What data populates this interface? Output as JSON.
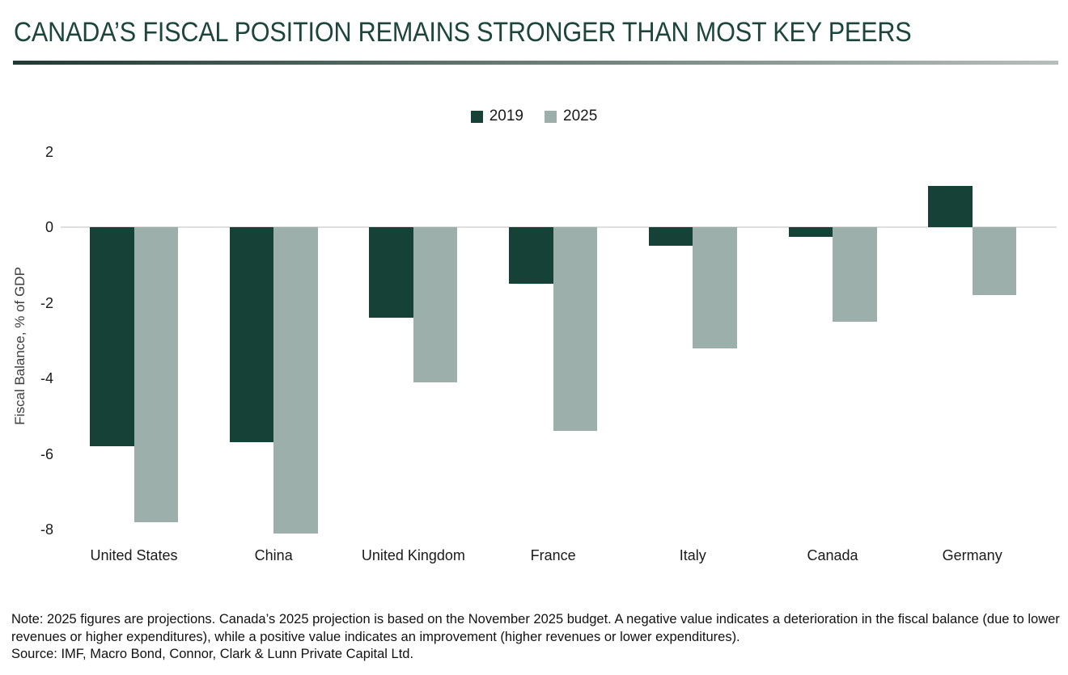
{
  "header": {
    "title": "CANADA’S FISCAL POSITION REMAINS STRONGER THAN MOST KEY PEERS",
    "title_color": "#1d453c",
    "divider_gradient": [
      "#1f3b33",
      "#b5beba"
    ]
  },
  "legend": {
    "items": [
      {
        "label": "2019",
        "color": "#164136"
      },
      {
        "label": "2025",
        "color": "#9cafab"
      }
    ]
  },
  "chart_data": {
    "type": "bar",
    "title": "CANADA’S FISCAL POSITION REMAINS STRONGER THAN MOST KEY PEERS",
    "categories": [
      "United States",
      "China",
      "United Kingdom",
      "France",
      "Italy",
      "Canada",
      "Germany"
    ],
    "series": [
      {
        "name": "2019",
        "color": "#164136",
        "values": [
          -5.8,
          -5.7,
          -2.4,
          -1.5,
          -0.5,
          -0.25,
          1.1
        ]
      },
      {
        "name": "2025",
        "color": "#9cafab",
        "values": [
          -7.8,
          -8.1,
          -4.1,
          -5.4,
          -3.2,
          -2.5,
          -1.8
        ]
      }
    ],
    "xlabel": "",
    "ylabel": "Fiscal Balance, % of GDP",
    "yticks": [
      2,
      0,
      -2,
      -4,
      -6,
      -8
    ],
    "ylim": [
      -8.4,
      2.4
    ],
    "grid": false,
    "zero_line": true,
    "legend_position": "top-center"
  },
  "footer": {
    "note": "Note: 2025 figures are projections. Canada’s 2025 projection is based on the November 2025 budget. A negative value indicates a deterioration in the fiscal balance (due to lower revenues or higher expenditures), while a positive value indicates an improvement (higher revenues or lower expenditures).",
    "source": "Source: IMF, Macro Bond, Connor, Clark & Lunn Private Capital Ltd."
  }
}
